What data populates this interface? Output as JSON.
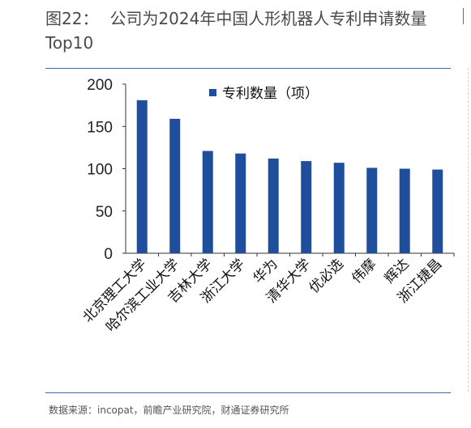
{
  "header": {
    "figure_label": "图22：",
    "title": "公司为2024年中国人形机器人专利申请数量Top10"
  },
  "source_text": "数据来源：incopat，前瞻产业研究院，财通证券研究所",
  "colors": {
    "bar": "#1f4e9c",
    "title": "#4a4a4a",
    "rule": "#2f6fb3"
  },
  "chart_data": {
    "type": "bar",
    "categories": [
      "北京理工大学",
      "哈尔滨工业大学",
      "吉林大学",
      "浙江大学",
      "华为",
      "清华大学",
      "优必选",
      "伟摩",
      "辉达",
      "浙江捷昌"
    ],
    "series": [
      {
        "name": "专利数量（项）",
        "values": [
          181,
          159,
          121,
          118,
          112,
          109,
          107,
          101,
          100,
          99
        ]
      }
    ],
    "ylim": [
      0,
      200
    ],
    "yticks": [
      0,
      50,
      100,
      150,
      200
    ],
    "legend_position": "top",
    "grid": false
  }
}
